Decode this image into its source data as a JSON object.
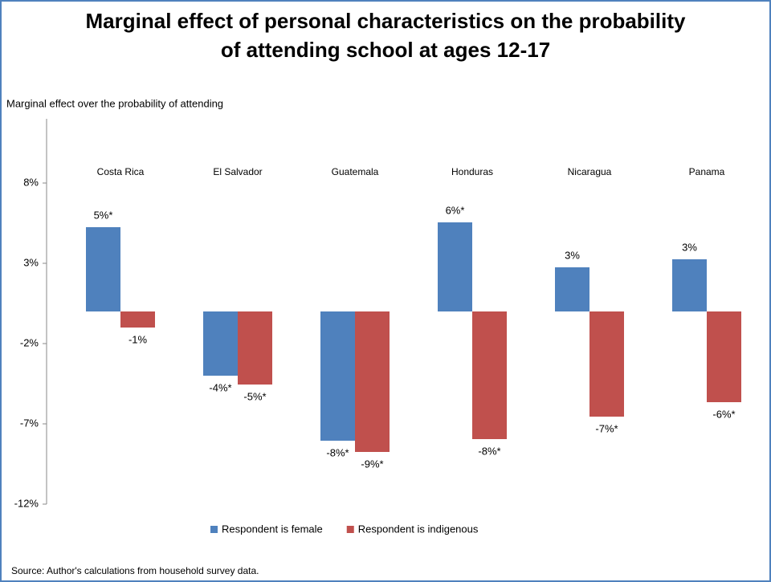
{
  "chart_data": {
    "type": "bar",
    "title": [
      "Marginal effect of personal characteristics on the probability",
      "of attending school at ages 12-17"
    ],
    "y_label": "Marginal effect over the probability of attending",
    "source": "Source: Author's calculations from household survey data.",
    "categories": [
      "Costa Rica",
      "El Salvador",
      "Guatemala",
      "Honduras",
      "Nicaragua",
      "Panama"
    ],
    "series": [
      {
        "name": "Respondent is female",
        "color": "#4f81bd",
        "values": [
          5.25,
          -4.0,
          -8.05,
          5.55,
          2.75,
          3.25
        ],
        "value_labels": [
          "5%*",
          "-4%*",
          "-8%*",
          "6%*",
          "3%",
          "3%"
        ]
      },
      {
        "name": "Respondent is indigenous",
        "color": "#c0504d",
        "values": [
          -1.0,
          -4.55,
          -8.75,
          -7.95,
          -6.55,
          -5.65
        ],
        "value_labels": [
          "-1%",
          "-5%*",
          "-9%*",
          "-8%*",
          "-7%*",
          "-6%*"
        ]
      }
    ],
    "ylim": [
      -12,
      12
    ],
    "yticks": [
      {
        "value": 8,
        "label": "8%"
      },
      {
        "value": 3,
        "label": "3%"
      },
      {
        "value": -2,
        "label": "-2%"
      },
      {
        "value": -7,
        "label": "-7%"
      },
      {
        "value": -12,
        "label": "-12%"
      }
    ],
    "legend": "bottom"
  }
}
